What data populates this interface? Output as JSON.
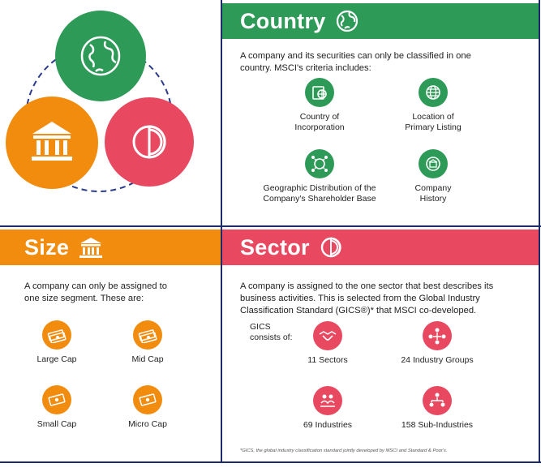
{
  "country": {
    "title": "Country",
    "intro": "A company and its securities can only be classified in one country. MSCI's criteria includes:",
    "criteria": [
      {
        "line1": "Country of",
        "line2": "Incorporation"
      },
      {
        "line1": "Location of",
        "line2": "Primary Listing"
      },
      {
        "line1": "Geographic Distribution of the",
        "line2": "Company's Shareholder Base"
      },
      {
        "line1": "Company",
        "line2": "History"
      }
    ]
  },
  "size": {
    "title": "Size",
    "intro": "A company can only be assigned to one size segment. These are:",
    "segments": [
      "Large Cap",
      "Mid Cap",
      "Small Cap",
      "Micro Cap"
    ]
  },
  "sector": {
    "title": "Sector",
    "intro": "A company is assigned to the one sector that best describes its business activities. This is selected from the Global Industry Classification Standard (GICS®)* that MSCI co-developed.",
    "gics_label_line1": "GICS",
    "gics_label_line2": "consists of:",
    "levels": [
      "11 Sectors",
      "24 Industry Groups",
      "69 Industries",
      "158 Sub-Industries"
    ],
    "footnote": "*GICS, the global industry classification standard jointly developed by MSCI and Standard & Poor's."
  },
  "colors": {
    "country": "#2e9a57",
    "size": "#f28c0e",
    "sector": "#e84860",
    "frame": "#1f2a6b",
    "ring": "#2a3a8c"
  },
  "icons": {
    "country": "globe-icon",
    "size": "bank-building-icon",
    "sector": "pie-segment-icon"
  }
}
